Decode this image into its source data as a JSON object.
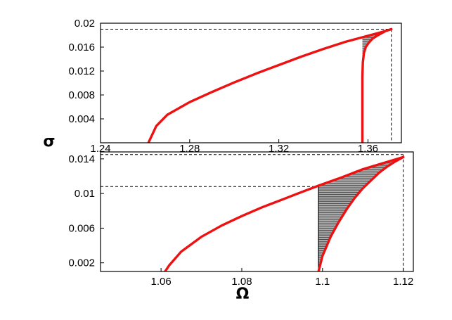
{
  "colors": {
    "curve": "#ee1111",
    "hatch": "#333333",
    "frame": "#000000"
  },
  "labels": {
    "ylabel": "σ",
    "xlabel": "Ω"
  },
  "chart_data": [
    {
      "type": "line",
      "panel": "top",
      "xlim": [
        1.24,
        1.375
      ],
      "ylim": [
        0.0,
        0.02
      ],
      "xticks": [
        "1.24",
        "1.28",
        "1.32",
        "1.36"
      ],
      "xtick_values": [
        1.24,
        1.28,
        1.32,
        1.36
      ],
      "yticks": [
        "0.004",
        "0.008",
        "0.012",
        "0.016",
        "0.02"
      ],
      "ytick_values": [
        0.004,
        0.008,
        0.012,
        0.016,
        0.02
      ],
      "series": [
        {
          "role": "upper-branch",
          "x": [
            1.2615,
            1.262,
            1.265,
            1.27,
            1.28,
            1.29,
            1.3,
            1.31,
            1.32,
            1.33,
            1.34,
            1.35,
            1.36,
            1.365,
            1.3705
          ],
          "y": [
            0.0,
            0.0004,
            0.0028,
            0.0047,
            0.0068,
            0.0085,
            0.0101,
            0.0116,
            0.013,
            0.0144,
            0.0157,
            0.0169,
            0.0179,
            0.0184,
            0.019
          ]
        },
        {
          "role": "lower-branch",
          "x": [
            1.3575,
            1.3575,
            1.3577,
            1.3582,
            1.359,
            1.3605,
            1.362,
            1.364,
            1.366,
            1.368,
            1.3705
          ],
          "y": [
            0.0,
            0.011,
            0.0135,
            0.015,
            0.016,
            0.0168,
            0.0174,
            0.0179,
            0.0183,
            0.0187,
            0.019
          ]
        }
      ],
      "reference_lines": {
        "y": 0.019,
        "x": 1.3705
      },
      "shaded_region": {
        "x_start": 1.3575,
        "x_end": 1.3705
      }
    },
    {
      "type": "line",
      "panel": "bottom",
      "xlim": [
        1.045,
        1.1225
      ],
      "ylim": [
        0.001,
        0.0148
      ],
      "xticks": [
        "1.06",
        "1.08",
        "1.1",
        "1.12"
      ],
      "xtick_values": [
        1.06,
        1.08,
        1.1,
        1.12
      ],
      "yticks": [
        "0.002",
        "0.006",
        "0.01",
        "0.014"
      ],
      "ytick_values": [
        0.002,
        0.006,
        0.01,
        0.014
      ],
      "series": [
        {
          "role": "upper-branch",
          "x": [
            1.061,
            1.062,
            1.065,
            1.07,
            1.075,
            1.08,
            1.085,
            1.09,
            1.095,
            1.099,
            1.105,
            1.11,
            1.115,
            1.12
          ],
          "y": [
            0.001,
            0.0017,
            0.0033,
            0.005,
            0.0063,
            0.0074,
            0.0084,
            0.0093,
            0.0102,
            0.0109,
            0.0119,
            0.0128,
            0.0135,
            0.0142
          ]
        },
        {
          "role": "lower-branch",
          "x": [
            1.099,
            1.1,
            1.102,
            1.104,
            1.106,
            1.108,
            1.11,
            1.112,
            1.114,
            1.116,
            1.118,
            1.12
          ],
          "y": [
            0.001,
            0.0028,
            0.005,
            0.0067,
            0.0082,
            0.0095,
            0.0106,
            0.0115,
            0.0124,
            0.0131,
            0.0137,
            0.0142
          ]
        }
      ],
      "reference_lines": {
        "y_upper": 0.0145,
        "y_lower": 0.0108,
        "x": 1.12
      },
      "shaded_region": {
        "x_start": 1.099,
        "x_end": 1.12
      }
    }
  ]
}
